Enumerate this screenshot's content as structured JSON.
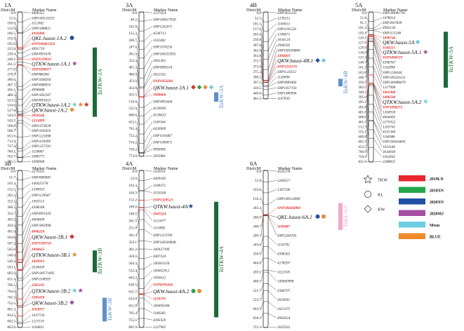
{
  "header": {
    "dist": "Dist/cM",
    "marker": "Marker Name"
  },
  "chromosomes": [
    {
      "id": "1A",
      "markers": [
        {
          "pos": "0.0",
          "name": "4406355"
        },
        {
          "pos": "52.5",
          "name": "SNP100510253"
        },
        {
          "pos": "109.0",
          "name": "1112082"
        },
        {
          "pos": "112.9",
          "name": "SNP1088821"
        },
        {
          "pos": "186.5",
          "name": "1010408",
          "red": true
        },
        {
          "pos": "193.9",
          "name": "QKL.haust-1A.2",
          "qtl": true
        },
        {
          "pos": "195.0",
          "name": "SNP100461256",
          "red": true
        },
        {
          "pos": "215.0",
          "name": "4991719"
        },
        {
          "pos": "239.4",
          "name": "SNP4991678"
        },
        {
          "pos": "248.5",
          "name": "SNP1159010",
          "red": true
        },
        {
          "pos": "261.5",
          "name": "QTKW.haust-1A.1",
          "qtl": true
        },
        {
          "pos": "277.0",
          "name": "SNP1090977",
          "red": true
        },
        {
          "pos": "278.9",
          "name": "SNP986360"
        },
        {
          "pos": "389.6",
          "name": "SNP1038264"
        },
        {
          "pos": "407.7",
          "name": "SNP4988910"
        },
        {
          "pos": "456.1",
          "name": "4990688"
        },
        {
          "pos": "488.3",
          "name": "SNP1092167"
        },
        {
          "pos": "523.5",
          "name": "SNP4991613"
        },
        {
          "pos": "534.6",
          "name": "QTKW.haust-1A.2",
          "qtl": true
        },
        {
          "pos": "537.8",
          "name": "QKW.haust-1A.2",
          "qtl": true
        },
        {
          "pos": "543.0",
          "name": "3956546",
          "red": true
        },
        {
          "pos": "543.5",
          "name": "1213099",
          "red": true
        },
        {
          "pos": "568.8",
          "name": "SNP1074028"
        },
        {
          "pos": "580.7",
          "name": "SNP1030459"
        },
        {
          "pos": "655.0",
          "name": "SNP1223098"
        },
        {
          "pos": "713.9",
          "name": "SNP1104499"
        },
        {
          "pos": "727.4",
          "name": "SNP1257291"
        },
        {
          "pos": "760.1",
          "name": "1138067"
        },
        {
          "pos": "762.7",
          "name": "1089771"
        },
        {
          "pos": "785.5",
          "name": "1090908"
        }
      ],
      "clusters": [
        {
          "label": "TaTKW-1A",
          "color": "#1a6b37"
        }
      ]
    },
    {
      "id": "3A",
      "markers": [
        {
          "pos": "0.0",
          "name": "1227454"
        },
        {
          "pos": "49.2",
          "name": "SNP100417930"
        },
        {
          "pos": "101.9",
          "name": "SNP1202071"
        },
        {
          "pos": "155.3",
          "name": "4536713"
        },
        {
          "pos": "200.7",
          "name": "1102482"
        },
        {
          "pos": "247.0",
          "name": "SNP1070256"
        },
        {
          "pos": "301.9",
          "name": "SNP100355955"
        },
        {
          "pos": "353.4",
          "name": "3941361"
        },
        {
          "pos": "401.3",
          "name": "SNP4990318"
        },
        {
          "pos": "406.9",
          "name": "3022162"
        },
        {
          "pos": "453.9",
          "name": "SNP1053244",
          "red": true
        },
        {
          "pos": "454.9",
          "name": "QKW.haust-3A.1",
          "qtl": true
        },
        {
          "pos": "455.5",
          "name": "1000666",
          "red": true
        },
        {
          "pos": "510.6",
          "name": "SNP4991604"
        },
        {
          "pos": "555.9",
          "name": "4539090"
        },
        {
          "pos": "600.6",
          "name": "4539633"
        },
        {
          "pos": "653.1",
          "name": "1100164"
        },
        {
          "pos": "702.4",
          "name": "4439909"
        },
        {
          "pos": "752.2",
          "name": "SNP1104467"
        },
        {
          "pos": "754.2",
          "name": "SNP1090071"
        },
        {
          "pos": "756.2",
          "name": "4990985"
        },
        {
          "pos": "773.0",
          "name": "3935881"
        }
      ],
      "clusters": [
        {
          "label": "TaKW-3A",
          "color": "#5e8fcc"
        }
      ]
    },
    {
      "id": "4B",
      "markers": [
        {
          "pos": "0.0",
          "name": "SNP3025233"
        },
        {
          "pos": "52.5",
          "name": "1239212"
        },
        {
          "pos": "101.1",
          "name": "1100813"
        },
        {
          "pos": "157.6",
          "name": "SNP1195526"
        },
        {
          "pos": "205.0",
          "name": "1249671"
        },
        {
          "pos": "250.8",
          "name": "3034124"
        },
        {
          "pos": "307.0",
          "name": "3940595"
        },
        {
          "pos": "362.0",
          "name": "SNP100509880"
        },
        {
          "pos": "363.8",
          "name": "3384603",
          "red": true
        },
        {
          "pos": "372.7",
          "name": "QKW.haust-4B.1",
          "qtl": true
        },
        {
          "pos": "373.0",
          "name": "SNP1235576",
          "red": true
        },
        {
          "pos": "375.2",
          "name": "SNP1125612"
        },
        {
          "pos": "390.5",
          "name": "1126894"
        },
        {
          "pos": "397.5",
          "name": "SNP4989460"
        },
        {
          "pos": "410.5",
          "name": "SNP1057193"
        },
        {
          "pos": "440.0",
          "name": "SNP1080994"
        },
        {
          "pos": "461.5",
          "name": "1107639"
        }
      ],
      "clusters": [
        {
          "label": "TaKW-4B",
          "color": "#5e8fcc"
        }
      ]
    },
    {
      "id": "5A",
      "markers": [
        {
          "pos": "0.0",
          "name": "SNP100081705"
        },
        {
          "pos": "51.8",
          "name": "1078014"
        },
        {
          "pos": "91.7",
          "name": "SNP3947839"
        },
        {
          "pos": "101.4",
          "name": "4993136"
        },
        {
          "pos": "102.4",
          "name": "SNP1111246"
        },
        {
          "pos": "126.3",
          "name": "1098744",
          "red": true
        },
        {
          "pos": "127.0",
          "name": "QKW.haust-5A",
          "qtl": true
        },
        {
          "pos": "129.0",
          "name": "1140211",
          "red": true
        },
        {
          "pos": "136.0",
          "name": "QTKW.haust-5A.1",
          "qtl": true
        },
        {
          "pos": "137.4",
          "name": "SNP1090729",
          "red": true
        },
        {
          "pos": "148.7",
          "name": "4396767"
        },
        {
          "pos": "161.2",
          "name": "1102894"
        },
        {
          "pos": "163.8",
          "name": "SNP1228444"
        },
        {
          "pos": "208.7",
          "name": "SNP100356131"
        },
        {
          "pos": "256.5",
          "name": "SNP100088479"
        },
        {
          "pos": "303.5",
          "name": "1217998"
        },
        {
          "pos": "349.3",
          "name": "1861968",
          "red": true
        },
        {
          "pos": "395.0",
          "name": "1006590",
          "red": true
        },
        {
          "pos": "395.1",
          "name": "QTKW.haust-5A.2",
          "qtl": true
        },
        {
          "pos": "395.8",
          "name": "SNP1098273",
          "red": true
        },
        {
          "pos": "401.6",
          "name": "1204918"
        },
        {
          "pos": "408.6",
          "name": "4004495"
        },
        {
          "pos": "461.5",
          "name": "2275922"
        },
        {
          "pos": "512.3",
          "name": "1203742"
        },
        {
          "pos": "555.1",
          "name": "4541384"
        },
        {
          "pos": "600.0",
          "name": "1106986"
        },
        {
          "pos": "605.5",
          "name": "SNP100456845"
        },
        {
          "pos": "652.5",
          "name": "1031108"
        },
        {
          "pos": "700.0",
          "name": "3034049"
        },
        {
          "pos": "750.6",
          "name": "1162834"
        },
        {
          "pos": "831.6",
          "name": "2288835"
        }
      ],
      "clusters": [
        {
          "label": "TaTKW-5A",
          "color": "#1a6b37"
        }
      ]
    },
    {
      "id": "3B",
      "markers": [
        {
          "pos": "0.0",
          "name": "2279333"
        },
        {
          "pos": "51.7",
          "name": "SNP4989081"
        },
        {
          "pos": "103.3",
          "name": "100425578"
        },
        {
          "pos": "152.5",
          "name": "1349033"
        },
        {
          "pos": "202.3",
          "name": "SNP1129947"
        },
        {
          "pos": "252.3",
          "name": "1003515"
        },
        {
          "pos": "300.5",
          "name": "4398348"
        },
        {
          "pos": "354.7",
          "name": "SNP4991029"
        },
        {
          "pos": "403.5",
          "name": "4004609"
        },
        {
          "pos": "450.5",
          "name": "SNP1003998"
        },
        {
          "pos": "491.0",
          "name": "4986224",
          "red": true
        },
        {
          "pos": "504.0",
          "name": "QKW.haust-3B.1",
          "qtl": true
        },
        {
          "pos": "507.2",
          "name": "SNP1109710",
          "red": true
        },
        {
          "pos": "545.0",
          "name": "1094625",
          "red": true
        },
        {
          "pos": "548.0",
          "name": "QTKW.haust-3B.1",
          "qtl": true
        },
        {
          "pos": "549.4",
          "name": "1029913",
          "red": true
        },
        {
          "pos": "593.1",
          "name": "3534039"
        },
        {
          "pos": "605.0",
          "name": "SNP100571695"
        },
        {
          "pos": "651.4",
          "name": "SNP1108939"
        },
        {
          "pos": "706.5",
          "name": "3385195",
          "red": true
        },
        {
          "pos": "744.0",
          "name": "QTKW.haust-3B.2",
          "qtl": true
        },
        {
          "pos": "745.3",
          "name": "3385418",
          "red": true
        },
        {
          "pos": "752.5",
          "name": "QKW.haust-3B.2",
          "qtl": true
        },
        {
          "pos": "801.3",
          "name": "1103075",
          "red": true
        },
        {
          "pos": "834.5",
          "name": "1037726"
        },
        {
          "pos": "842.5",
          "name": "1227119"
        },
        {
          "pos": "863.6",
          "name": "1104831"
        }
      ],
      "clusters": [
        {
          "label": "TaTKW-3B",
          "color": "#1a6b37"
        },
        {
          "label": "TaKW-3B",
          "color": "#5e8fcc"
        }
      ]
    },
    {
      "id": "4A",
      "markers": [
        {
          "pos": "0.0",
          "name": "1118310"
        },
        {
          "pos": "52.0",
          "name": "4409183"
        },
        {
          "pos": "102.3",
          "name": "1108372"
        },
        {
          "pos": "104.3",
          "name": "3533500"
        },
        {
          "pos": "152.2",
          "name": "SNP1329523",
          "red": true
        },
        {
          "pos": "189.0",
          "name": "QTKW.haust-4A",
          "qtl": true
        },
        {
          "pos": "190.5",
          "name": "3947224",
          "red": true
        },
        {
          "pos": "201.5",
          "name": "1121877"
        },
        {
          "pos": "251.0",
          "name": "1114982"
        },
        {
          "pos": "301.4",
          "name": "SNP1213700"
        },
        {
          "pos": "359.1",
          "name": "SNP100509848"
        },
        {
          "pos": "401.2",
          "name": "100427390"
        },
        {
          "pos": "450.0",
          "name": "4407324"
        },
        {
          "pos": "504.3",
          "name": "100363156"
        },
        {
          "pos": "552.4",
          "name": "100002912"
        },
        {
          "pos": "603.2",
          "name": "1093612"
        },
        {
          "pos": "630.5",
          "name": "SNP4395436",
          "red": true
        },
        {
          "pos": "631.7",
          "name": "QKW.haust-4A.2",
          "qtl": true
        },
        {
          "pos": "633.0",
          "name": "1129776",
          "red": true
        },
        {
          "pos": "651.8",
          "name": "100490188"
        },
        {
          "pos": "705.4",
          "name": "1106383"
        },
        {
          "pos": "755.5",
          "name": "4395929"
        },
        {
          "pos": "801.9",
          "name": "1237965"
        }
      ],
      "clusters": [
        {
          "label": "TaTKW-4A",
          "color": "#1a6b37"
        }
      ]
    },
    {
      "id": "6A",
      "markers": [
        {
          "pos": "0.0",
          "name": "4542278"
        },
        {
          "pos": "52.8",
          "name": "2260557"
        },
        {
          "pos": "103.0",
          "name": "1307290"
        },
        {
          "pos": "156.2",
          "name": "SNP100524080"
        },
        {
          "pos": "203.4",
          "name": "SNP100458803",
          "red": true
        },
        {
          "pos": "206.0",
          "name": "QKL.haust-6A.1",
          "qtl": true
        },
        {
          "pos": "208.7",
          "name": "1109487",
          "red": true
        },
        {
          "pos": "209.3",
          "name": "SNP2264705"
        },
        {
          "pos": "303.6",
          "name": "1150792"
        },
        {
          "pos": "350.0",
          "name": "4396363"
        },
        {
          "pos": "404.0",
          "name": "4278597"
        },
        {
          "pos": "459.1",
          "name": "3222505"
        },
        {
          "pos": "468.5",
          "name": "100000998"
        },
        {
          "pos": "521.7",
          "name": "3384707"
        },
        {
          "pos": "553.7",
          "name": "3024941"
        },
        {
          "pos": "603.9",
          "name": "3021475"
        },
        {
          "pos": "658.3",
          "name": "4992624"
        },
        {
          "pos": "723.3",
          "name": "3025932"
        }
      ],
      "clusters": [
        {
          "label": "TaKL-6A",
          "color": "#f2a9c8"
        }
      ]
    }
  ],
  "legend": {
    "shapes": [
      {
        "label": "TKW",
        "icon": "star-icon"
      },
      {
        "label": "KL",
        "icon": "circle-icon"
      },
      {
        "label": "KW",
        "icon": "diamond-icon"
      }
    ],
    "environments": [
      {
        "label": "2019LN",
        "color": "#e8262c"
      },
      {
        "label": "2018XN",
        "color": "#22a84a"
      },
      {
        "label": "2020XN",
        "color": "#1f4fa6"
      },
      {
        "label": "2020MJ",
        "color": "#a64ea4"
      },
      {
        "label": "Mean",
        "color": "#6dcde3"
      },
      {
        "label": "BLUE",
        "color": "#f08a2b"
      }
    ]
  }
}
